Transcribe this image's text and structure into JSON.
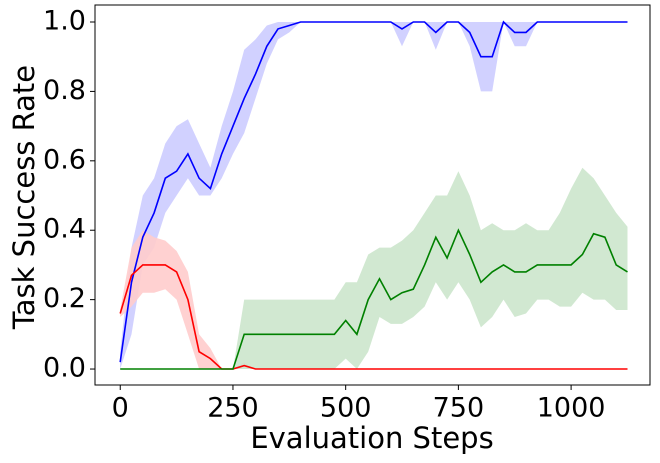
{
  "chart_data": {
    "type": "line",
    "x_label": "Evaluation Steps",
    "y_label": "Task Success Rate",
    "x": [
      0,
      25,
      50,
      75,
      100,
      125,
      150,
      175,
      200,
      225,
      250,
      275,
      300,
      325,
      350,
      375,
      400,
      425,
      450,
      475,
      500,
      525,
      550,
      575,
      600,
      625,
      650,
      675,
      700,
      725,
      750,
      775,
      800,
      825,
      850,
      875,
      900,
      925,
      950,
      975,
      1000,
      1025,
      1050,
      1075,
      1100,
      1125
    ],
    "xlim": [
      -56,
      1175
    ],
    "xticks": [
      0,
      250,
      500,
      750,
      1000
    ],
    "ylim": [
      -0.046,
      1.049
    ],
    "yticks": [
      {
        "value": 0,
        "label": "0.0"
      },
      {
        "value": 0.2,
        "label": "0.2"
      },
      {
        "value": 0.4,
        "label": "0.4"
      },
      {
        "value": 0.6,
        "label": "0.6"
      },
      {
        "value": 0.8,
        "label": "0.8"
      },
      {
        "value": 1,
        "label": "1.0"
      }
    ],
    "series": [
      {
        "color": "#0000ff",
        "band_color": "#ccccff",
        "values": [
          0.02,
          0.25,
          0.38,
          0.45,
          0.55,
          0.57,
          0.62,
          0.55,
          0.52,
          0.62,
          0.7,
          0.78,
          0.85,
          0.93,
          0.98,
          0.99,
          1,
          1,
          1,
          1,
          1,
          1,
          1,
          1,
          1,
          0.98,
          1,
          1,
          0.97,
          1,
          1,
          0.97,
          0.9,
          0.9,
          1,
          0.97,
          0.97,
          1,
          1,
          1,
          1,
          1,
          1,
          1,
          1,
          1
        ],
        "lower": [
          0,
          0.1,
          0.3,
          0.35,
          0.45,
          0.5,
          0.55,
          0.5,
          0.5,
          0.55,
          0.62,
          0.68,
          0.78,
          0.88,
          0.95,
          0.97,
          1,
          1,
          1,
          1,
          1,
          1,
          1,
          1,
          1,
          0.93,
          1,
          1,
          0.92,
          1,
          1,
          0.93,
          0.8,
          0.8,
          1,
          0.93,
          0.93,
          1,
          1,
          1,
          1,
          1,
          1,
          1,
          1,
          1
        ],
        "upper": [
          0.05,
          0.35,
          0.5,
          0.55,
          0.65,
          0.7,
          0.72,
          0.65,
          0.58,
          0.7,
          0.8,
          0.92,
          0.95,
          0.99,
          1,
          1,
          1,
          1,
          1,
          1,
          1,
          1,
          1,
          1,
          1,
          1,
          1,
          1,
          1,
          1,
          1,
          1,
          1,
          1,
          1,
          1,
          1,
          1,
          1,
          1,
          1,
          1,
          1,
          1,
          1,
          1
        ]
      },
      {
        "color": "#ff0000",
        "band_color": "#ffcccc",
        "values": [
          0.16,
          0.27,
          0.3,
          0.3,
          0.3,
          0.28,
          0.2,
          0.05,
          0.03,
          0,
          0,
          0.01,
          0,
          0,
          0,
          0,
          0,
          0,
          0,
          0,
          0,
          0,
          0,
          0,
          0,
          0,
          0,
          0,
          0,
          0,
          0,
          0,
          0,
          0,
          0,
          0,
          0,
          0,
          0,
          0,
          0,
          0,
          0,
          0,
          0,
          0
        ],
        "lower": [
          0.15,
          0.18,
          0.22,
          0.22,
          0.23,
          0.2,
          0.1,
          0,
          0,
          0,
          0,
          0,
          0,
          0,
          0,
          0,
          0,
          0,
          0,
          0,
          0,
          0,
          0,
          0,
          0,
          0,
          0,
          0,
          0,
          0,
          0,
          0,
          0,
          0,
          0,
          0,
          0,
          0,
          0,
          0,
          0,
          0,
          0,
          0,
          0,
          0
        ],
        "upper": [
          0.17,
          0.35,
          0.4,
          0.38,
          0.37,
          0.34,
          0.28,
          0.1,
          0.06,
          0,
          0,
          0.02,
          0,
          0,
          0,
          0,
          0,
          0,
          0,
          0,
          0,
          0,
          0,
          0,
          0,
          0,
          0,
          0,
          0,
          0,
          0,
          0,
          0,
          0,
          0,
          0,
          0,
          0,
          0,
          0,
          0,
          0,
          0,
          0,
          0,
          0
        ]
      },
      {
        "color": "#008000",
        "band_color": "#cce5cc",
        "values": [
          0,
          0,
          0,
          0,
          0,
          0,
          0,
          0,
          0,
          0,
          0,
          0.1,
          0.1,
          0.1,
          0.1,
          0.1,
          0.1,
          0.1,
          0.1,
          0.1,
          0.14,
          0.1,
          0.2,
          0.26,
          0.2,
          0.22,
          0.23,
          0.3,
          0.38,
          0.32,
          0.4,
          0.33,
          0.25,
          0.28,
          0.3,
          0.28,
          0.28,
          0.3,
          0.3,
          0.3,
          0.3,
          0.33,
          0.39,
          0.38,
          0.3,
          0.28
        ],
        "lower": [
          0,
          0,
          0,
          0,
          0,
          0,
          0,
          0,
          0,
          0,
          0,
          0,
          0,
          0,
          0,
          0,
          0,
          0,
          0,
          0,
          0.03,
          0,
          0.05,
          0.15,
          0.13,
          0.13,
          0.15,
          0.18,
          0.25,
          0.2,
          0.25,
          0.2,
          0.12,
          0.15,
          0.2,
          0.15,
          0.16,
          0.2,
          0.2,
          0.18,
          0.18,
          0.22,
          0.2,
          0.2,
          0.17,
          0.17
        ],
        "upper": [
          0,
          0,
          0,
          0,
          0,
          0,
          0,
          0,
          0,
          0,
          0,
          0.2,
          0.2,
          0.2,
          0.2,
          0.2,
          0.2,
          0.2,
          0.2,
          0.2,
          0.25,
          0.25,
          0.33,
          0.35,
          0.35,
          0.37,
          0.4,
          0.45,
          0.5,
          0.5,
          0.57,
          0.5,
          0.4,
          0.42,
          0.4,
          0.4,
          0.42,
          0.4,
          0.4,
          0.45,
          0.52,
          0.58,
          0.55,
          0.5,
          0.45,
          0.41
        ]
      }
    ]
  }
}
